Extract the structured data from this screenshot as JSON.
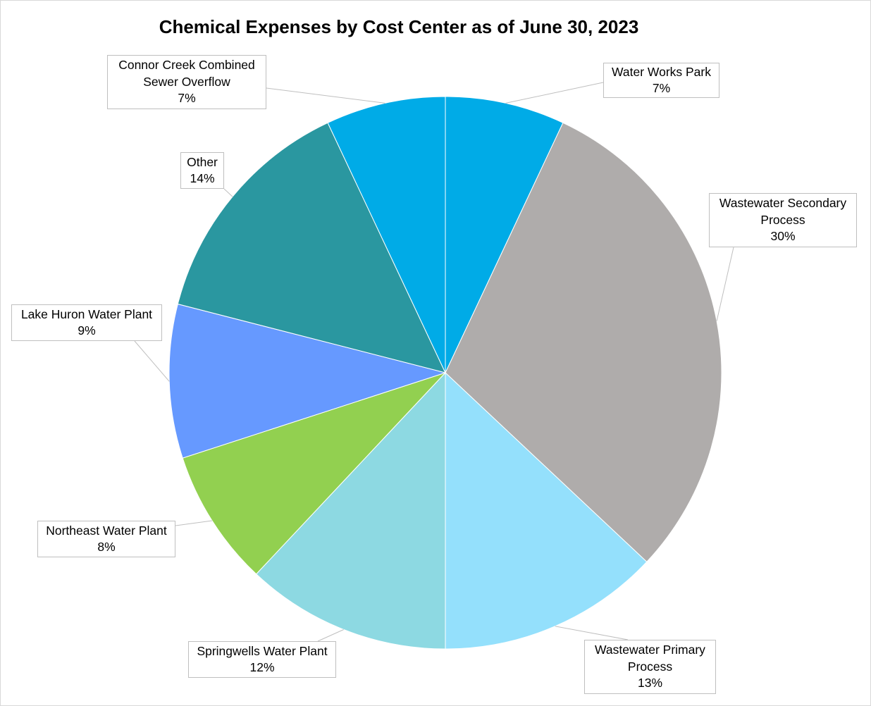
{
  "chart_data": {
    "type": "pie",
    "title": "Chemical Expenses by Cost Center as of June 30, 2023",
    "start_angle_deg": 0,
    "direction": "clockwise",
    "slices": [
      {
        "label_lines": [
          "Water Works Park"
        ],
        "pct_label": "7%",
        "value": 7,
        "color": "#00ABE7"
      },
      {
        "label_lines": [
          "Wastewater Secondary",
          "Process"
        ],
        "pct_label": "30%",
        "value": 30,
        "color": "#AFACAB"
      },
      {
        "label_lines": [
          "Wastewater Primary",
          "Process"
        ],
        "pct_label": "13%",
        "value": 13,
        "color": "#94E0FC"
      },
      {
        "label_lines": [
          "Springwells Water Plant"
        ],
        "pct_label": "12%",
        "value": 12,
        "color": "#8DD9E2"
      },
      {
        "label_lines": [
          "Northeast Water Plant"
        ],
        "pct_label": "8%",
        "value": 8,
        "color": "#92D050"
      },
      {
        "label_lines": [
          "Lake Huron Water Plant"
        ],
        "pct_label": "9%",
        "value": 9,
        "color": "#6699FF"
      },
      {
        "label_lines": [
          "Other"
        ],
        "pct_label": "14%",
        "value": 14,
        "color": "#2A97A0"
      },
      {
        "label_lines": [
          "Connor Creek Combined",
          "Sewer Overflow"
        ],
        "pct_label": "7%",
        "value": 7,
        "color": "#00ABE7"
      }
    ],
    "legend": "none",
    "label_style": "callout"
  }
}
